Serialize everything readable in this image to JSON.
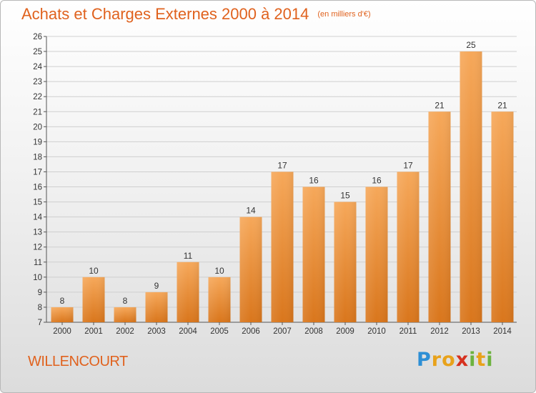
{
  "header": {
    "title": "Achats et Charges Externes 2000 à 2014",
    "subtitle": "(en milliers d'€)"
  },
  "footer": {
    "commune": "WILLENCOURT",
    "logo": "Proxiti",
    "logo_letters": [
      {
        "ch": "P",
        "color": "#2d8fd5"
      },
      {
        "ch": "r",
        "color": "#e8a21b"
      },
      {
        "ch": "o",
        "color": "#e8a21b"
      },
      {
        "ch": "x",
        "color": "#d6311f"
      },
      {
        "ch": "i",
        "color": "#6db33f"
      },
      {
        "ch": "t",
        "color": "#e8a21b"
      },
      {
        "ch": "i",
        "color": "#6db33f"
      }
    ]
  },
  "colors": {
    "bar_top": "#f6a85a",
    "bar_bottom": "#d9761c",
    "grid": "#cfcfcf",
    "title": "#e0621e"
  },
  "chart_data": {
    "type": "bar",
    "title": "Achats et Charges Externes 2000 à 2014",
    "subtitle": "(en milliers d'€)",
    "xlabel": "",
    "ylabel": "",
    "categories": [
      "2000",
      "2001",
      "2002",
      "2003",
      "2004",
      "2005",
      "2006",
      "2007",
      "2008",
      "2009",
      "2010",
      "2011",
      "2012",
      "2013",
      "2014"
    ],
    "values": [
      8,
      10,
      8,
      9,
      11,
      10,
      14,
      17,
      16,
      15,
      16,
      17,
      21,
      25,
      21
    ],
    "ylim": [
      7,
      26
    ],
    "yticks": [
      7,
      8,
      9,
      10,
      11,
      12,
      13,
      14,
      15,
      16,
      17,
      18,
      19,
      20,
      21,
      22,
      23,
      24,
      25,
      26
    ],
    "grid": true,
    "legend": "none"
  }
}
